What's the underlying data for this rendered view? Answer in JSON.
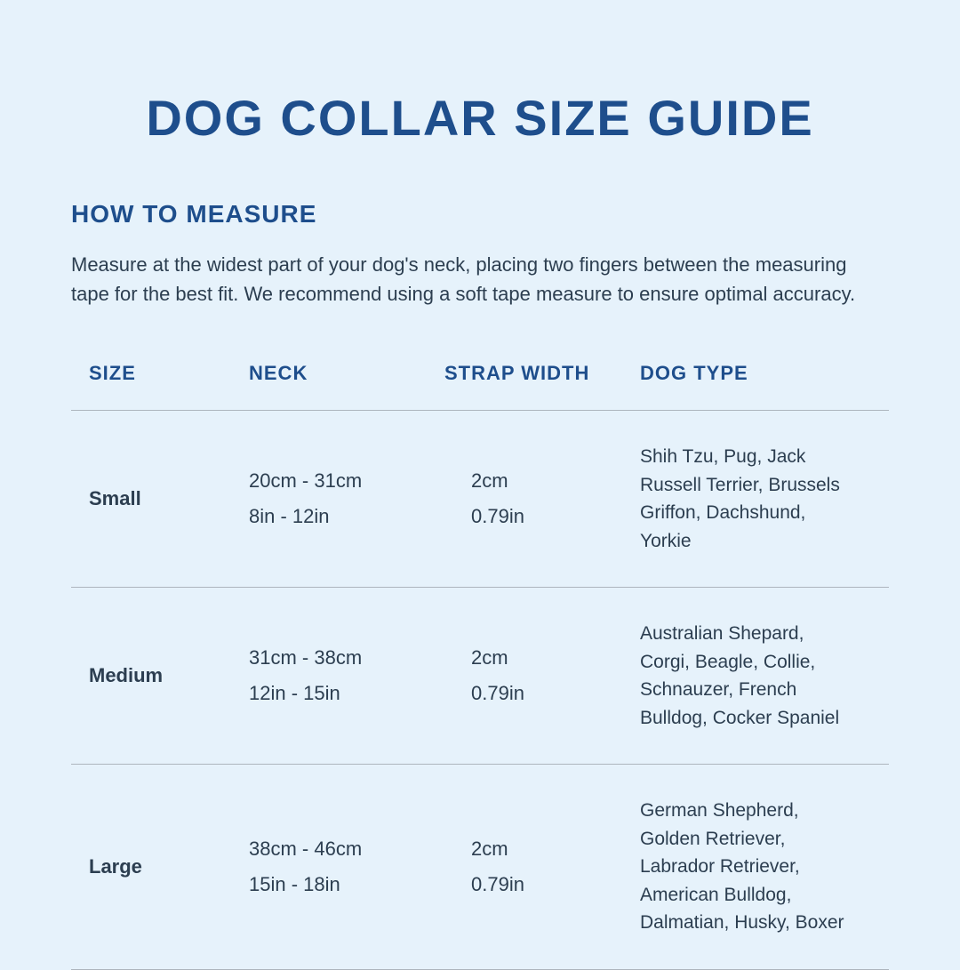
{
  "title": "DOG COLLAR SIZE GUIDE",
  "subtitle": "HOW TO MEASURE",
  "description": "Measure at the widest part of your dog's neck, placing two fingers between the measuring tape for the best fit. We recommend using a soft tape measure to ensure optimal accuracy.",
  "colors": {
    "background": "#e6f2fb",
    "heading": "#1e4e8c",
    "body_text": "#2c3e50",
    "divider": "#adb5bd"
  },
  "table": {
    "columns": {
      "size": "SIZE",
      "neck": "NECK",
      "strap": "STRAP WIDTH",
      "type": "DOG TYPE"
    },
    "rows": [
      {
        "size": "Small",
        "neck_cm": "20cm - 31cm",
        "neck_in": "8in - 12in",
        "strap_cm": "2cm",
        "strap_in": "0.79in",
        "type": "Shih Tzu, Pug, Jack Russell Terrier, Brussels Griffon, Dachshund, Yorkie"
      },
      {
        "size": "Medium",
        "neck_cm": "31cm - 38cm",
        "neck_in": "12in - 15in",
        "strap_cm": "2cm",
        "strap_in": "0.79in",
        "type": "Australian Shepard, Corgi, Beagle, Collie, Schnauzer, French Bulldog, Cocker Spaniel"
      },
      {
        "size": "Large",
        "neck_cm": "38cm - 46cm",
        "neck_in": "15in - 18in",
        "strap_cm": "2cm",
        "strap_in": "0.79in",
        "type": " German Shepherd, Golden Retriever, Labrador Retriever, American Bulldog, Dalmatian, Husky, Boxer"
      }
    ]
  }
}
